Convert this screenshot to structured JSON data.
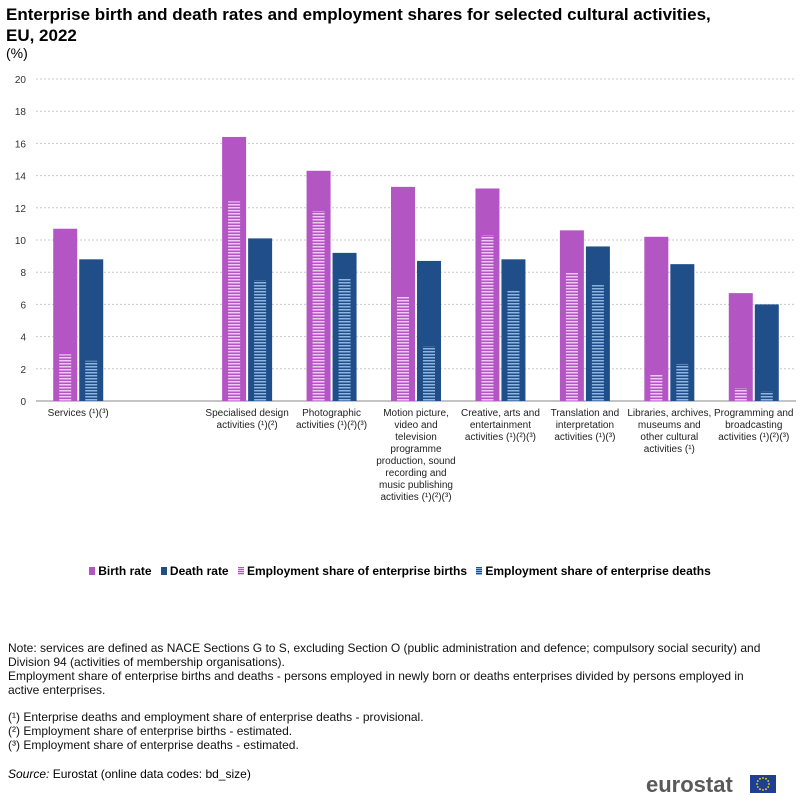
{
  "title": "Enterprise birth and death rates and employment shares for selected cultural activities, EU, 2022",
  "unit": "(%)",
  "colors": {
    "birth_rate": "#b455c4",
    "death_rate": "#1f4e89",
    "birth_share_stripe": "#e0a8ea",
    "death_share_stripe": "#6a9ad0"
  },
  "legend": {
    "birth_rate": "Birth rate",
    "death_rate": "Death rate",
    "birth_share": "Employment share of enterprise births",
    "death_share": "Employment share of enterprise deaths"
  },
  "notes": {
    "line1": "Note: services are defined as NACE Sections G to S, excluding Section O (public administration and defence; compulsory social security) and Division 94 (activities of membership organisations).",
    "line2": "Employment share of enterprise births and deaths - persons employed in newly born or deaths enterprises divided by persons employed in active enterprises.",
    "fn1": "(¹) Enterprise deaths and employment share of enterprise deaths - provisional.",
    "fn2": "(²) Employment share of enterprise births - estimated.",
    "fn3": "(³) Employment share of enterprise deaths - estimated."
  },
  "source": {
    "label": "Source:",
    "text": " Eurostat (online data codes: bd_size)"
  },
  "logo": "eurostat",
  "chart_data": {
    "type": "bar",
    "categories": [
      "Services (¹)(³)",
      "",
      "Specialised design activities (¹)(²)",
      "Photographic activities (¹)(²)(³)",
      "Motion picture, video and television programme production, sound recording and music publishing activities (¹)(²)(³)",
      "Creative, arts and entertainment activities (¹)(²)(³)",
      "Translation and interpretation activities (¹)(³)",
      "Libraries, archives, museums and other cultural activities (¹)",
      "Programming and broadcasting activities (¹)(²)(³)"
    ],
    "series": [
      {
        "name": "Birth rate",
        "values": [
          10.7,
          null,
          16.4,
          14.3,
          13.3,
          13.2,
          10.6,
          10.2,
          6.7
        ]
      },
      {
        "name": "Death rate",
        "values": [
          8.8,
          null,
          10.1,
          9.2,
          8.7,
          8.8,
          9.6,
          8.5,
          6.0
        ]
      },
      {
        "name": "Employment share of enterprise births",
        "values": [
          2.9,
          null,
          12.4,
          11.8,
          6.5,
          10.3,
          8.0,
          1.7,
          0.8
        ]
      },
      {
        "name": "Employment share of enterprise deaths",
        "values": [
          2.5,
          null,
          7.5,
          7.6,
          3.4,
          6.9,
          7.2,
          2.3,
          0.6
        ]
      }
    ],
    "ylim": [
      0,
      20
    ],
    "yticks": [
      0,
      2,
      4,
      6,
      8,
      10,
      12,
      14,
      16,
      18,
      20
    ],
    "grid": true,
    "legend_position": "bottom"
  }
}
